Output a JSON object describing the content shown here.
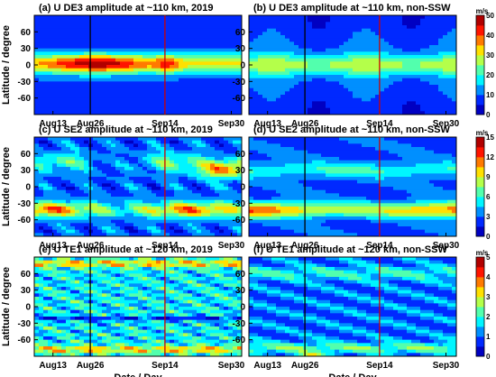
{
  "chart_data": [
    {
      "type": "heatmap",
      "title": "(a) U DE3 amplitude at ~110 km, 2019",
      "x_ticks": [
        "Aug13",
        "Aug26",
        "Sep14",
        "Sep30"
      ],
      "y_ticks": [
        "60",
        "30",
        "0",
        "-30",
        "-60"
      ],
      "ylim": [
        -90,
        90
      ],
      "ylabel": "Latitude / degree",
      "xlabel": "",
      "vertical_lines": [
        {
          "date": "Aug26",
          "color": "#000000"
        },
        {
          "date": "Sep14",
          "color": "#cc0000"
        }
      ],
      "peak_ms": 40
    },
    {
      "type": "heatmap",
      "title": "(b) U DE3 amplitude at ~110 km, non-SSW",
      "x_ticks": [
        "Aug13",
        "Aug26",
        "Sep14",
        "Sep30"
      ],
      "y_ticks": [
        "60",
        "30",
        "0",
        "-30",
        "-60"
      ],
      "ylim": [
        -90,
        90
      ],
      "ylabel": "",
      "xlabel": "",
      "vertical_lines": [
        {
          "date": "Aug26",
          "color": "#000000"
        },
        {
          "date": "Sep14",
          "color": "#cc0000"
        }
      ],
      "colorbar": {
        "unit": "m/s",
        "ticks": [
          "0",
          "10",
          "20",
          "30",
          "40",
          "50"
        ],
        "max": 50
      },
      "peak_ms": 22
    },
    {
      "type": "heatmap",
      "title": "(c) U SE2 amplitude at ~110 km, 2019",
      "x_ticks": [
        "Aug13",
        "Aug26",
        "Sep14",
        "Sep30"
      ],
      "y_ticks": [
        "60",
        "30",
        "0",
        "-30",
        "-60"
      ],
      "ylim": [
        -90,
        90
      ],
      "ylabel": "Latitude / degree",
      "xlabel": "",
      "vertical_lines": [
        {
          "date": "Aug26",
          "color": "#000000"
        },
        {
          "date": "Sep14",
          "color": "#cc0000"
        }
      ],
      "peak_ms": 14
    },
    {
      "type": "heatmap",
      "title": "(d) U SE2 amplitude at ~110 km, non-SSW",
      "x_ticks": [
        "Aug13",
        "Aug26",
        "Sep14",
        "Sep30"
      ],
      "y_ticks": [
        "60",
        "30",
        "0",
        "-30",
        "-60"
      ],
      "ylim": [
        -90,
        90
      ],
      "ylabel": "",
      "xlabel": "",
      "vertical_lines": [
        {
          "date": "Aug26",
          "color": "#000000"
        },
        {
          "date": "Sep14",
          "color": "#cc0000"
        }
      ],
      "colorbar": {
        "unit": "m/s",
        "ticks": [
          "0",
          "3",
          "6",
          "9",
          "12",
          "15"
        ],
        "max": 15
      },
      "peak_ms": 13
    },
    {
      "type": "heatmap",
      "title": "(e) U TE1 amplitude at ~120 km, 2019",
      "x_ticks": [
        "Aug13",
        "Aug26",
        "Sep14",
        "Sep30"
      ],
      "y_ticks": [
        "60",
        "30",
        "0",
        "-30",
        "-60"
      ],
      "ylim": [
        -90,
        90
      ],
      "ylabel": "Latitude / degree",
      "xlabel": "Date / Day",
      "vertical_lines": [
        {
          "date": "Aug26",
          "color": "#000000"
        },
        {
          "date": "Sep14",
          "color": "#cc0000"
        }
      ],
      "peak_ms": 5
    },
    {
      "type": "heatmap",
      "title": "(f) U TE1 amplitude at ~120 km, non-SSW",
      "x_ticks": [
        "Aug13",
        "Aug26",
        "Sep14",
        "Sep30"
      ],
      "y_ticks": [
        "60",
        "30",
        "0",
        "-30",
        "-60"
      ],
      "ylim": [
        -90,
        90
      ],
      "ylabel": "",
      "xlabel": "Date / Day",
      "vertical_lines": [
        {
          "date": "Aug26",
          "color": "#000000"
        },
        {
          "date": "Sep14",
          "color": "#cc0000"
        }
      ],
      "colorbar": {
        "unit": "m/s",
        "ticks": [
          "0",
          "1",
          "2",
          "3",
          "4",
          "5"
        ],
        "max": 5
      },
      "peak_ms": 4
    }
  ]
}
